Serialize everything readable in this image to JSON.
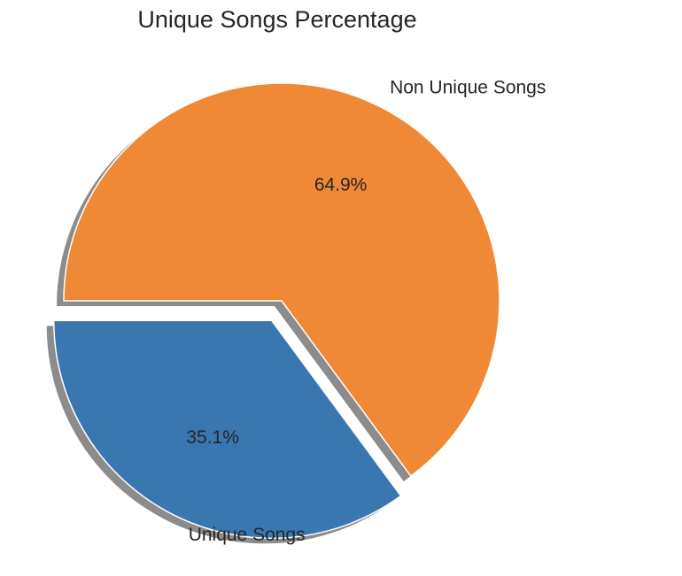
{
  "chart_data": {
    "type": "pie",
    "title": "Unique Songs Percentage",
    "slices": [
      {
        "label": "Unique Songs",
        "value": 35.1,
        "pct_label": "35.1%",
        "color": "#3a76b0",
        "exploded": true
      },
      {
        "label": "Non Unique Songs",
        "value": 64.9,
        "pct_label": "64.9%",
        "color": "#ef8936",
        "exploded": false
      }
    ],
    "shadow": true,
    "start_angle_deg": 180,
    "direction": "counterclockwise"
  }
}
